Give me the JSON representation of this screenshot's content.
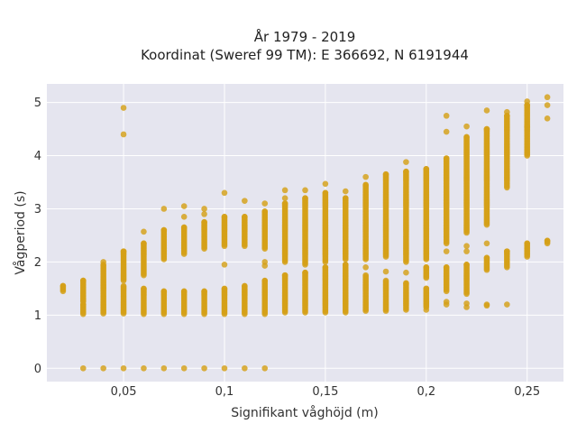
{
  "chart_data": {
    "type": "scatter",
    "title": "År 1979 - 2019",
    "subtitle": "Koordinat (Sweref 99 TM): E 366692, N 6191944",
    "xlabel": "Signifikant våghöjd (m)",
    "ylabel": "Vågperiod (s)",
    "xlim": [
      0.012,
      0.268
    ],
    "ylim": [
      -0.25,
      5.35
    ],
    "x_ticks": [
      0.05,
      0.1,
      0.15,
      0.2,
      0.25
    ],
    "x_tick_labels": [
      "0,05",
      "0,1",
      "0,15",
      "0,2",
      "0,25"
    ],
    "y_ticks": [
      0,
      1,
      2,
      3,
      4,
      5
    ],
    "y_tick_labels": [
      "0",
      "1",
      "2",
      "3",
      "4",
      "5"
    ],
    "grid": true,
    "marker_color": "#d4a017",
    "plot_background": "#e5e5ef",
    "columns": [
      {
        "x": 0.02,
        "ranges": [
          [
            1.45,
            1.55
          ]
        ],
        "points": []
      },
      {
        "x": 0.03,
        "ranges": [
          [
            1.02,
            1.2
          ],
          [
            1.25,
            1.65
          ]
        ],
        "points": [
          0
        ]
      },
      {
        "x": 0.04,
        "ranges": [
          [
            1.03,
            1.95
          ]
        ],
        "points": [
          0,
          2.0
        ]
      },
      {
        "x": 0.05,
        "ranges": [
          [
            1.03,
            1.55
          ],
          [
            1.65,
            2.2
          ]
        ],
        "points": [
          0,
          4.4,
          4.9
        ]
      },
      {
        "x": 0.06,
        "ranges": [
          [
            1.02,
            1.5
          ],
          [
            1.75,
            2.35
          ]
        ],
        "points": [
          0,
          2.57
        ]
      },
      {
        "x": 0.07,
        "ranges": [
          [
            1.02,
            1.45
          ],
          [
            2.05,
            2.6
          ]
        ],
        "points": [
          0,
          3.0
        ]
      },
      {
        "x": 0.08,
        "ranges": [
          [
            1.02,
            1.45
          ],
          [
            2.15,
            2.65
          ]
        ],
        "points": [
          0,
          2.85,
          3.05
        ]
      },
      {
        "x": 0.09,
        "ranges": [
          [
            1.02,
            1.45
          ],
          [
            2.25,
            2.75
          ]
        ],
        "points": [
          0,
          2.9,
          3.0
        ]
      },
      {
        "x": 0.1,
        "ranges": [
          [
            1.02,
            1.5
          ],
          [
            2.3,
            2.85
          ]
        ],
        "points": [
          0,
          1.95,
          3.3
        ]
      },
      {
        "x": 0.11,
        "ranges": [
          [
            1.02,
            1.55
          ],
          [
            2.3,
            2.85
          ]
        ],
        "points": [
          0,
          3.15
        ]
      },
      {
        "x": 0.12,
        "ranges": [
          [
            1.02,
            1.65
          ],
          [
            2.25,
            2.95
          ]
        ],
        "points": [
          0,
          1.93,
          2.0,
          3.1
        ]
      },
      {
        "x": 0.13,
        "ranges": [
          [
            1.05,
            1.75
          ],
          [
            2.0,
            3.1
          ]
        ],
        "points": [
          3.2,
          3.35
        ]
      },
      {
        "x": 0.14,
        "ranges": [
          [
            1.05,
            1.8
          ],
          [
            1.95,
            3.2
          ]
        ],
        "points": [
          3.35
        ]
      },
      {
        "x": 0.15,
        "ranges": [
          [
            1.05,
            1.9
          ],
          [
            2.0,
            3.3
          ]
        ],
        "points": [
          3.47
        ]
      },
      {
        "x": 0.16,
        "ranges": [
          [
            1.05,
            1.95
          ],
          [
            2.05,
            3.2
          ]
        ],
        "points": [
          3.33
        ]
      },
      {
        "x": 0.17,
        "ranges": [
          [
            1.08,
            1.75
          ],
          [
            2.05,
            3.45
          ]
        ],
        "points": [
          1.9,
          3.6
        ]
      },
      {
        "x": 0.18,
        "ranges": [
          [
            1.08,
            1.65
          ],
          [
            2.1,
            3.65
          ]
        ],
        "points": [
          1.82
        ]
      },
      {
        "x": 0.19,
        "ranges": [
          [
            1.1,
            1.6
          ],
          [
            2.0,
            3.7
          ]
        ],
        "points": [
          1.8,
          3.88
        ]
      },
      {
        "x": 0.2,
        "ranges": [
          [
            1.15,
            1.5
          ],
          [
            1.7,
            1.9
          ],
          [
            2.05,
            3.75
          ]
        ],
        "points": [
          1.1
        ]
      },
      {
        "x": 0.21,
        "ranges": [
          [
            1.45,
            1.9
          ],
          [
            2.35,
            3.95
          ]
        ],
        "points": [
          1.2,
          1.25,
          2.2,
          4.45,
          4.75
        ]
      },
      {
        "x": 0.22,
        "ranges": [
          [
            1.4,
            1.95
          ],
          [
            2.55,
            4.35
          ]
        ],
        "points": [
          1.15,
          1.22,
          2.2,
          2.3,
          4.55
        ]
      },
      {
        "x": 0.23,
        "ranges": [
          [
            1.85,
            2.08
          ],
          [
            2.7,
            4.5
          ]
        ],
        "points": [
          1.18,
          1.2,
          2.35,
          4.85
        ]
      },
      {
        "x": 0.24,
        "ranges": [
          [
            1.9,
            2.2
          ],
          [
            3.4,
            4.75
          ]
        ],
        "points": [
          1.2,
          4.82
        ]
      },
      {
        "x": 0.25,
        "ranges": [
          [
            2.1,
            2.35
          ],
          [
            4.0,
            4.95
          ]
        ],
        "points": [
          4.55,
          5.02
        ]
      },
      {
        "x": 0.26,
        "ranges": [
          [
            2.35,
            2.4
          ]
        ],
        "points": [
          4.7,
          4.95,
          5.1
        ]
      }
    ]
  }
}
